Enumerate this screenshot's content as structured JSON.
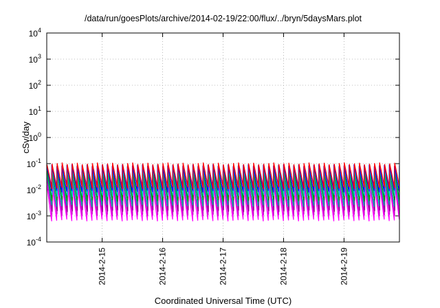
{
  "chart_data": {
    "type": "line",
    "title": "/data/run/goesPlots/archive/2014-02-19/22:00/flux/../bryn/5daysMars.plot",
    "xlabel": "Coordinated Universal Time (UTC)",
    "ylabel": "cSv/day",
    "yscale": "log",
    "ylim": [
      0.0001,
      10000
    ],
    "xlim": [
      "2014-02-14 02:00",
      "2014-02-19 22:00"
    ],
    "x_ticks": [
      "2014-2-15",
      "2014-2-16",
      "2014-2-17",
      "2014-2-18",
      "2014-2-19"
    ],
    "y_ticks": [
      {
        "base": "10",
        "exp": "-4"
      },
      {
        "base": "10",
        "exp": "-3"
      },
      {
        "base": "10",
        "exp": "-2"
      },
      {
        "base": "10",
        "exp": "-1"
      },
      {
        "base": "10",
        "exp": "0"
      },
      {
        "base": "10",
        "exp": "1"
      },
      {
        "base": "10",
        "exp": "2"
      },
      {
        "base": "10",
        "exp": "3"
      },
      {
        "base": "10",
        "exp": "4"
      }
    ],
    "grid": true,
    "legend": "none",
    "pattern": {
      "sawtooth_period_hours": 2,
      "teeth_per_day": 12,
      "step_rounds": 3
    },
    "series": [
      {
        "color": "#ff00ff",
        "peak": 0.018,
        "trough": 0.0007
      },
      {
        "color": "#cc00cc",
        "peak": 0.025,
        "trough": 0.0011
      },
      {
        "color": "#990099",
        "peak": 0.032,
        "trough": 0.0016
      },
      {
        "color": "#00aaaa",
        "peak": 0.045,
        "trough": 0.0025
      },
      {
        "color": "#009900",
        "peak": 0.055,
        "trough": 0.004
      },
      {
        "color": "#00cccc",
        "peak": 0.065,
        "trough": 0.006
      },
      {
        "color": "#0000ff",
        "peak": 0.085,
        "trough": 0.009
      },
      {
        "color": "#ff0000",
        "peak": 0.1,
        "trough": 0.012
      }
    ]
  }
}
